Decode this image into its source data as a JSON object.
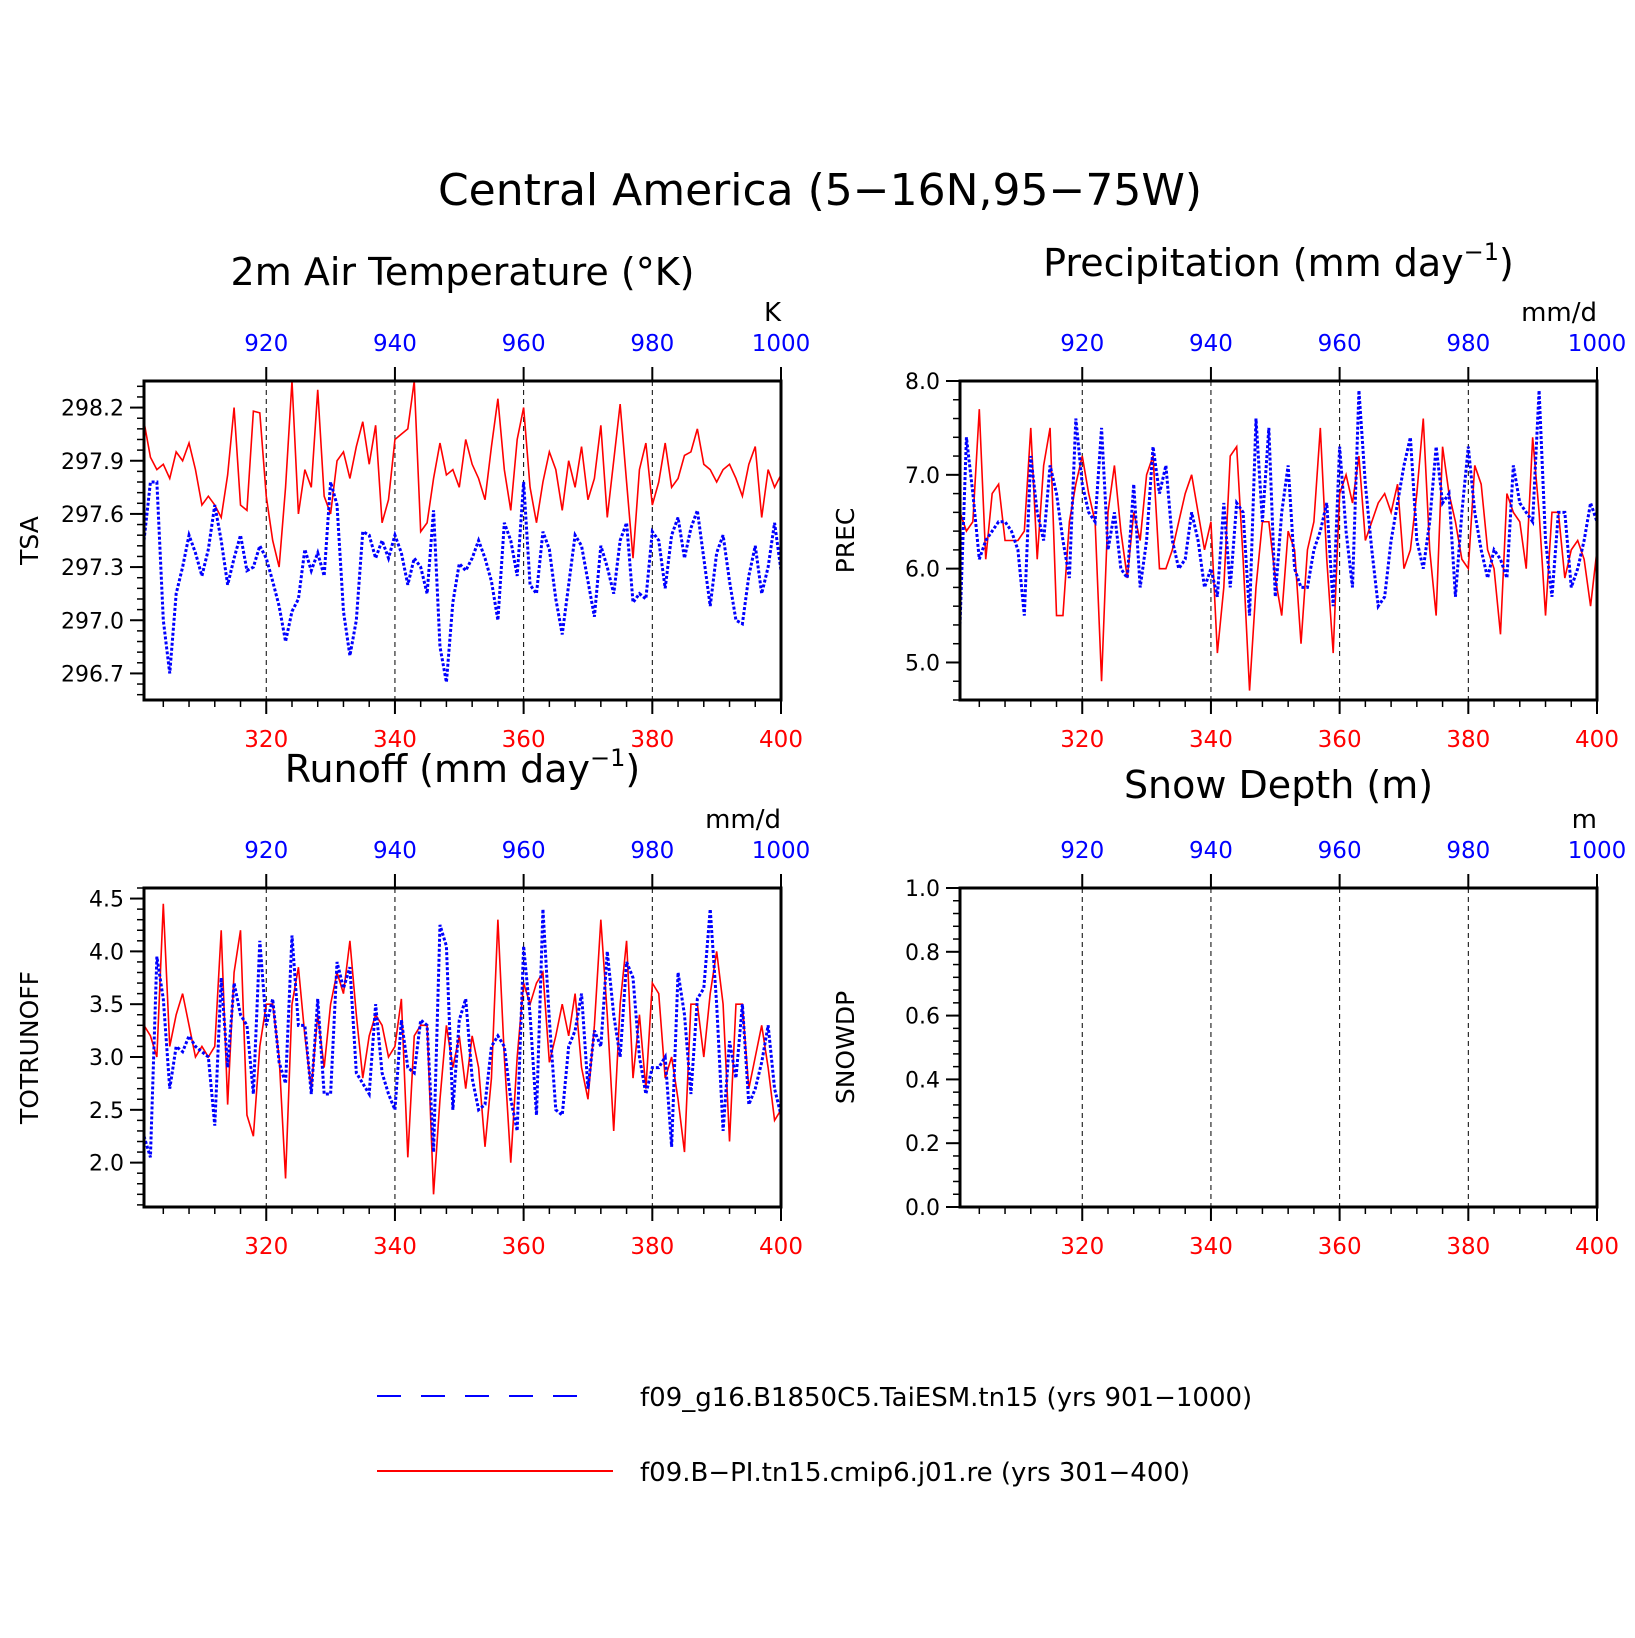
{
  "figure": {
    "title": "Central America (5−16N,95−75W)"
  },
  "legend": {
    "entries": [
      {
        "label": "f09_g16.B1850C5.TaiESM.tn15 (yrs 901−1000)",
        "color": "#0000ff",
        "style": "dashed"
      },
      {
        "label": "f09.B−PI.tn15.cmip6.j01.re (yrs 301−400)",
        "color": "#ff0000",
        "style": "solid"
      }
    ]
  },
  "colors": {
    "blue_series": "#0000ff",
    "red_series": "#ff0000",
    "axis": "#000000"
  },
  "chart_data": [
    {
      "type": "line",
      "title": "2m Air Temperature (°K)",
      "ylabel": "TSA",
      "units": "K",
      "ylim": [
        296.55,
        298.35
      ],
      "yticks": [
        296.7,
        297.0,
        297.3,
        297.6,
        297.9,
        298.2
      ],
      "yticklabels": [
        "296.7",
        "297.0",
        "297.3",
        "297.6",
        "297.9",
        "298.2"
      ],
      "x_bottom": {
        "lim": [
          301,
          400
        ],
        "ticks": [
          320,
          340,
          360,
          380,
          400
        ],
        "color": "#ff0000"
      },
      "x_top": {
        "lim": [
          901,
          1000
        ],
        "ticks": [
          920,
          940,
          960,
          980,
          1000
        ],
        "color": "#0000ff"
      },
      "grid": "dashed vertical at ticks",
      "series": [
        {
          "name": "f09.B−PI.tn15.cmip6.j01.re (yrs 301−400)",
          "axis": "bottom",
          "color": "#ff0000",
          "values": [
            298.12,
            297.92,
            297.85,
            297.88,
            297.8,
            297.95,
            297.9,
            298.0,
            297.85,
            297.65,
            297.7,
            297.65,
            297.58,
            297.82,
            298.2,
            297.65,
            297.62,
            298.18,
            298.17,
            297.7,
            297.45,
            297.3,
            297.75,
            298.35,
            297.6,
            297.85,
            297.75,
            298.3,
            297.7,
            297.6,
            297.9,
            297.95,
            297.8,
            297.98,
            298.12,
            297.88,
            298.1,
            297.55,
            297.68,
            298.02,
            298.05,
            298.08,
            298.35,
            297.5,
            297.55,
            297.8,
            298.0,
            297.82,
            297.85,
            297.75,
            298.02,
            297.88,
            297.8,
            297.68,
            297.98,
            298.25,
            297.85,
            297.62,
            298.02,
            298.2,
            297.75,
            297.55,
            297.78,
            297.95,
            297.85,
            297.62,
            297.9,
            297.75,
            297.98,
            297.68,
            297.8,
            298.1,
            297.58,
            297.9,
            298.22,
            297.78,
            297.35,
            297.85,
            298.0,
            297.65,
            297.78,
            298.0,
            297.75,
            297.8,
            297.93,
            297.95,
            298.08,
            297.88,
            297.85,
            297.78,
            297.85,
            297.88,
            297.8,
            297.7,
            297.88,
            297.98,
            297.58,
            297.85,
            297.75,
            297.82
          ]
        },
        {
          "name": "f09_g16.B1850C5.TaiESM.tn15 (yrs 901−1000)",
          "axis": "top",
          "color": "#0000ff",
          "values": [
            297.45,
            297.78,
            297.78,
            297.0,
            296.7,
            297.15,
            297.3,
            297.48,
            297.38,
            297.25,
            297.4,
            297.65,
            297.45,
            297.2,
            297.35,
            297.48,
            297.28,
            297.3,
            297.42,
            297.35,
            297.22,
            297.08,
            296.88,
            297.05,
            297.12,
            297.4,
            297.28,
            297.38,
            297.25,
            297.78,
            297.65,
            297.05,
            296.8,
            297.0,
            297.5,
            297.48,
            297.35,
            297.45,
            297.35,
            297.48,
            297.38,
            297.2,
            297.35,
            297.3,
            297.15,
            297.62,
            296.85,
            296.65,
            297.1,
            297.32,
            297.28,
            297.35,
            297.45,
            297.35,
            297.22,
            297.0,
            297.55,
            297.45,
            297.25,
            297.78,
            297.2,
            297.15,
            297.5,
            297.4,
            297.12,
            296.92,
            297.2,
            297.48,
            297.42,
            297.22,
            297.02,
            297.42,
            297.3,
            297.15,
            297.45,
            297.55,
            297.1,
            297.15,
            297.12,
            297.5,
            297.45,
            297.18,
            297.48,
            297.58,
            297.35,
            297.52,
            297.62,
            297.35,
            297.08,
            297.38,
            297.48,
            297.22,
            297.0,
            296.98,
            297.25,
            297.42,
            297.15,
            297.3,
            297.55,
            297.28
          ]
        }
      ]
    },
    {
      "type": "line",
      "title": "Precipitation (mm day⁻¹)",
      "ylabel": "PREC",
      "units": "mm/d",
      "ylim": [
        4.6,
        8.0
      ],
      "yticks": [
        5.0,
        6.0,
        7.0,
        8.0
      ],
      "yticklabels": [
        "5.0",
        "6.0",
        "7.0",
        "8.0"
      ],
      "x_bottom": {
        "lim": [
          301,
          400
        ],
        "ticks": [
          320,
          340,
          360,
          380,
          400
        ],
        "color": "#ff0000"
      },
      "x_top": {
        "lim": [
          901,
          1000
        ],
        "ticks": [
          920,
          940,
          960,
          980,
          1000
        ],
        "color": "#0000ff"
      },
      "grid": "dashed vertical at ticks",
      "series": [
        {
          "name": "f09.B−PI.tn15.cmip6.j01.re (yrs 301−400)",
          "axis": "bottom",
          "color": "#ff0000",
          "values": [
            6.6,
            6.4,
            6.5,
            7.7,
            6.1,
            6.8,
            6.9,
            6.3,
            6.3,
            6.3,
            6.4,
            7.5,
            6.1,
            7.1,
            7.5,
            5.5,
            5.5,
            6.5,
            6.9,
            7.2,
            6.8,
            6.5,
            4.8,
            6.6,
            7.1,
            6.4,
            5.9,
            6.6,
            6.3,
            7.0,
            7.2,
            6.0,
            6.0,
            6.2,
            6.5,
            6.8,
            7.0,
            6.6,
            6.2,
            6.5,
            5.1,
            5.8,
            7.2,
            7.3,
            6.1,
            4.7,
            5.8,
            6.5,
            6.5,
            5.9,
            5.5,
            6.4,
            6.2,
            5.2,
            6.2,
            6.5,
            7.5,
            6.1,
            5.1,
            6.8,
            7.0,
            6.7,
            7.2,
            6.3,
            6.5,
            6.7,
            6.8,
            6.6,
            6.9,
            6.0,
            6.2,
            6.8,
            7.6,
            6.2,
            5.5,
            7.3,
            6.8,
            6.5,
            6.1,
            6.0,
            7.1,
            6.9,
            6.2,
            6.0,
            5.3,
            6.8,
            6.6,
            6.5,
            6.0,
            7.4,
            6.6,
            5.5,
            6.6,
            6.6,
            5.9,
            6.2,
            6.3,
            6.1,
            5.6,
            6.2
          ]
        },
        {
          "name": "f09_g16.B1850C5.TaiESM.tn15 (yrs 901−1000)",
          "axis": "top",
          "color": "#0000ff",
          "values": [
            5.4,
            7.4,
            6.8,
            6.1,
            6.3,
            6.4,
            6.5,
            6.5,
            6.4,
            6.2,
            5.5,
            7.2,
            6.6,
            6.3,
            7.1,
            6.8,
            6.3,
            5.9,
            7.6,
            6.9,
            6.6,
            6.5,
            7.5,
            6.2,
            6.6,
            6.0,
            5.9,
            6.9,
            5.8,
            6.3,
            7.3,
            6.8,
            7.1,
            6.3,
            6.0,
            6.1,
            6.6,
            6.3,
            5.8,
            6.0,
            5.7,
            6.7,
            5.8,
            6.7,
            6.6,
            5.5,
            7.6,
            6.5,
            7.5,
            5.7,
            6.6,
            7.1,
            6.0,
            5.8,
            5.8,
            6.2,
            6.4,
            6.7,
            5.6,
            7.3,
            6.4,
            5.8,
            7.9,
            6.9,
            6.2,
            5.6,
            5.7,
            6.3,
            6.7,
            7.1,
            7.4,
            6.3,
            6.0,
            6.5,
            7.3,
            6.7,
            6.8,
            5.7,
            6.6,
            7.3,
            6.6,
            6.2,
            5.9,
            6.2,
            6.1,
            5.9,
            7.1,
            6.7,
            6.6,
            6.5,
            7.9,
            6.3,
            5.7,
            6.6,
            6.6,
            5.8,
            6.0,
            6.3,
            6.7,
            6.5
          ]
        }
      ]
    },
    {
      "type": "line",
      "title": "Runoff (mm day⁻¹)",
      "ylabel": "TOTRUNOFF",
      "units": "mm/d",
      "ylim": [
        1.58,
        4.6
      ],
      "yticks": [
        2.0,
        2.5,
        3.0,
        3.5,
        4.0,
        4.5
      ],
      "yticklabels": [
        "2.0",
        "2.5",
        "3.0",
        "3.5",
        "4.0",
        "4.5"
      ],
      "x_bottom": {
        "lim": [
          301,
          400
        ],
        "ticks": [
          320,
          340,
          360,
          380,
          400
        ],
        "color": "#ff0000"
      },
      "x_top": {
        "lim": [
          901,
          1000
        ],
        "ticks": [
          920,
          940,
          960,
          980,
          1000
        ],
        "color": "#0000ff"
      },
      "grid": "dashed vertical at ticks",
      "series": [
        {
          "name": "f09.B−PI.tn15.cmip6.j01.re (yrs 301−400)",
          "axis": "bottom",
          "color": "#ff0000",
          "values": [
            3.3,
            3.2,
            3.0,
            4.45,
            3.1,
            3.4,
            3.6,
            3.3,
            3.0,
            3.1,
            3.0,
            3.1,
            4.2,
            2.55,
            3.8,
            4.2,
            2.45,
            2.25,
            3.1,
            3.5,
            3.5,
            3.0,
            1.85,
            3.5,
            3.85,
            3.2,
            2.7,
            3.4,
            2.9,
            3.5,
            3.8,
            3.6,
            4.1,
            3.4,
            2.8,
            3.2,
            3.4,
            3.3,
            3.0,
            3.1,
            3.55,
            2.05,
            3.2,
            3.3,
            3.3,
            1.7,
            2.6,
            3.3,
            2.9,
            3.2,
            2.7,
            3.2,
            2.9,
            2.15,
            2.8,
            4.3,
            3.0,
            2.0,
            3.0,
            3.7,
            3.5,
            3.7,
            3.8,
            2.95,
            3.2,
            3.5,
            3.2,
            3.6,
            2.9,
            2.6,
            3.3,
            4.3,
            3.4,
            2.3,
            3.5,
            4.1,
            2.8,
            3.4,
            2.7,
            3.7,
            3.6,
            2.8,
            3.0,
            2.6,
            2.1,
            3.5,
            3.5,
            3.0,
            3.6,
            4.0,
            3.5,
            2.2,
            3.5,
            3.5,
            2.7,
            3.0,
            3.3,
            2.9,
            2.4,
            2.5
          ]
        },
        {
          "name": "f09_g16.B1850C5.TaiESM.tn15 (yrs 901−1000)",
          "axis": "top",
          "color": "#0000ff",
          "values": [
            2.25,
            2.05,
            3.95,
            3.55,
            2.7,
            3.1,
            3.05,
            3.2,
            3.1,
            3.05,
            3.0,
            2.35,
            3.75,
            2.9,
            3.7,
            3.4,
            3.3,
            2.65,
            4.1,
            3.3,
            3.55,
            2.95,
            2.75,
            4.15,
            3.3,
            3.3,
            2.65,
            3.55,
            2.65,
            2.65,
            3.9,
            3.65,
            3.85,
            2.85,
            2.75,
            2.65,
            3.5,
            2.85,
            2.65,
            2.5,
            3.35,
            2.9,
            2.85,
            3.35,
            3.3,
            2.1,
            4.25,
            4.05,
            2.5,
            3.35,
            3.55,
            2.8,
            2.5,
            2.55,
            3.1,
            3.2,
            3.1,
            2.6,
            2.3,
            4.05,
            3.4,
            2.45,
            4.4,
            3.35,
            2.5,
            2.45,
            3.1,
            3.25,
            3.6,
            2.7,
            3.25,
            3.1,
            4.0,
            3.4,
            3.0,
            3.9,
            3.75,
            3.0,
            2.65,
            2.9,
            2.9,
            3.0,
            2.15,
            3.8,
            3.4,
            2.65,
            3.55,
            3.65,
            4.4,
            3.5,
            2.3,
            3.15,
            2.8,
            3.5,
            2.55,
            2.7,
            2.95,
            3.3,
            2.7,
            2.45
          ]
        }
      ]
    },
    {
      "type": "line",
      "title": "Snow Depth (m)",
      "ylabel": "SNOWDP",
      "units": "m",
      "ylim": [
        0.0,
        1.0
      ],
      "yticks": [
        0.0,
        0.2,
        0.4,
        0.6,
        0.8,
        1.0
      ],
      "yticklabels": [
        "0.0",
        "0.2",
        "0.4",
        "0.6",
        "0.8",
        "1.0"
      ],
      "x_bottom": {
        "lim": [
          301,
          400
        ],
        "ticks": [
          320,
          340,
          360,
          380,
          400
        ],
        "color": "#ff0000"
      },
      "x_top": {
        "lim": [
          901,
          1000
        ],
        "ticks": [
          920,
          940,
          960,
          980,
          1000
        ],
        "color": "#0000ff"
      },
      "grid": "dashed vertical at ticks",
      "series": []
    }
  ]
}
